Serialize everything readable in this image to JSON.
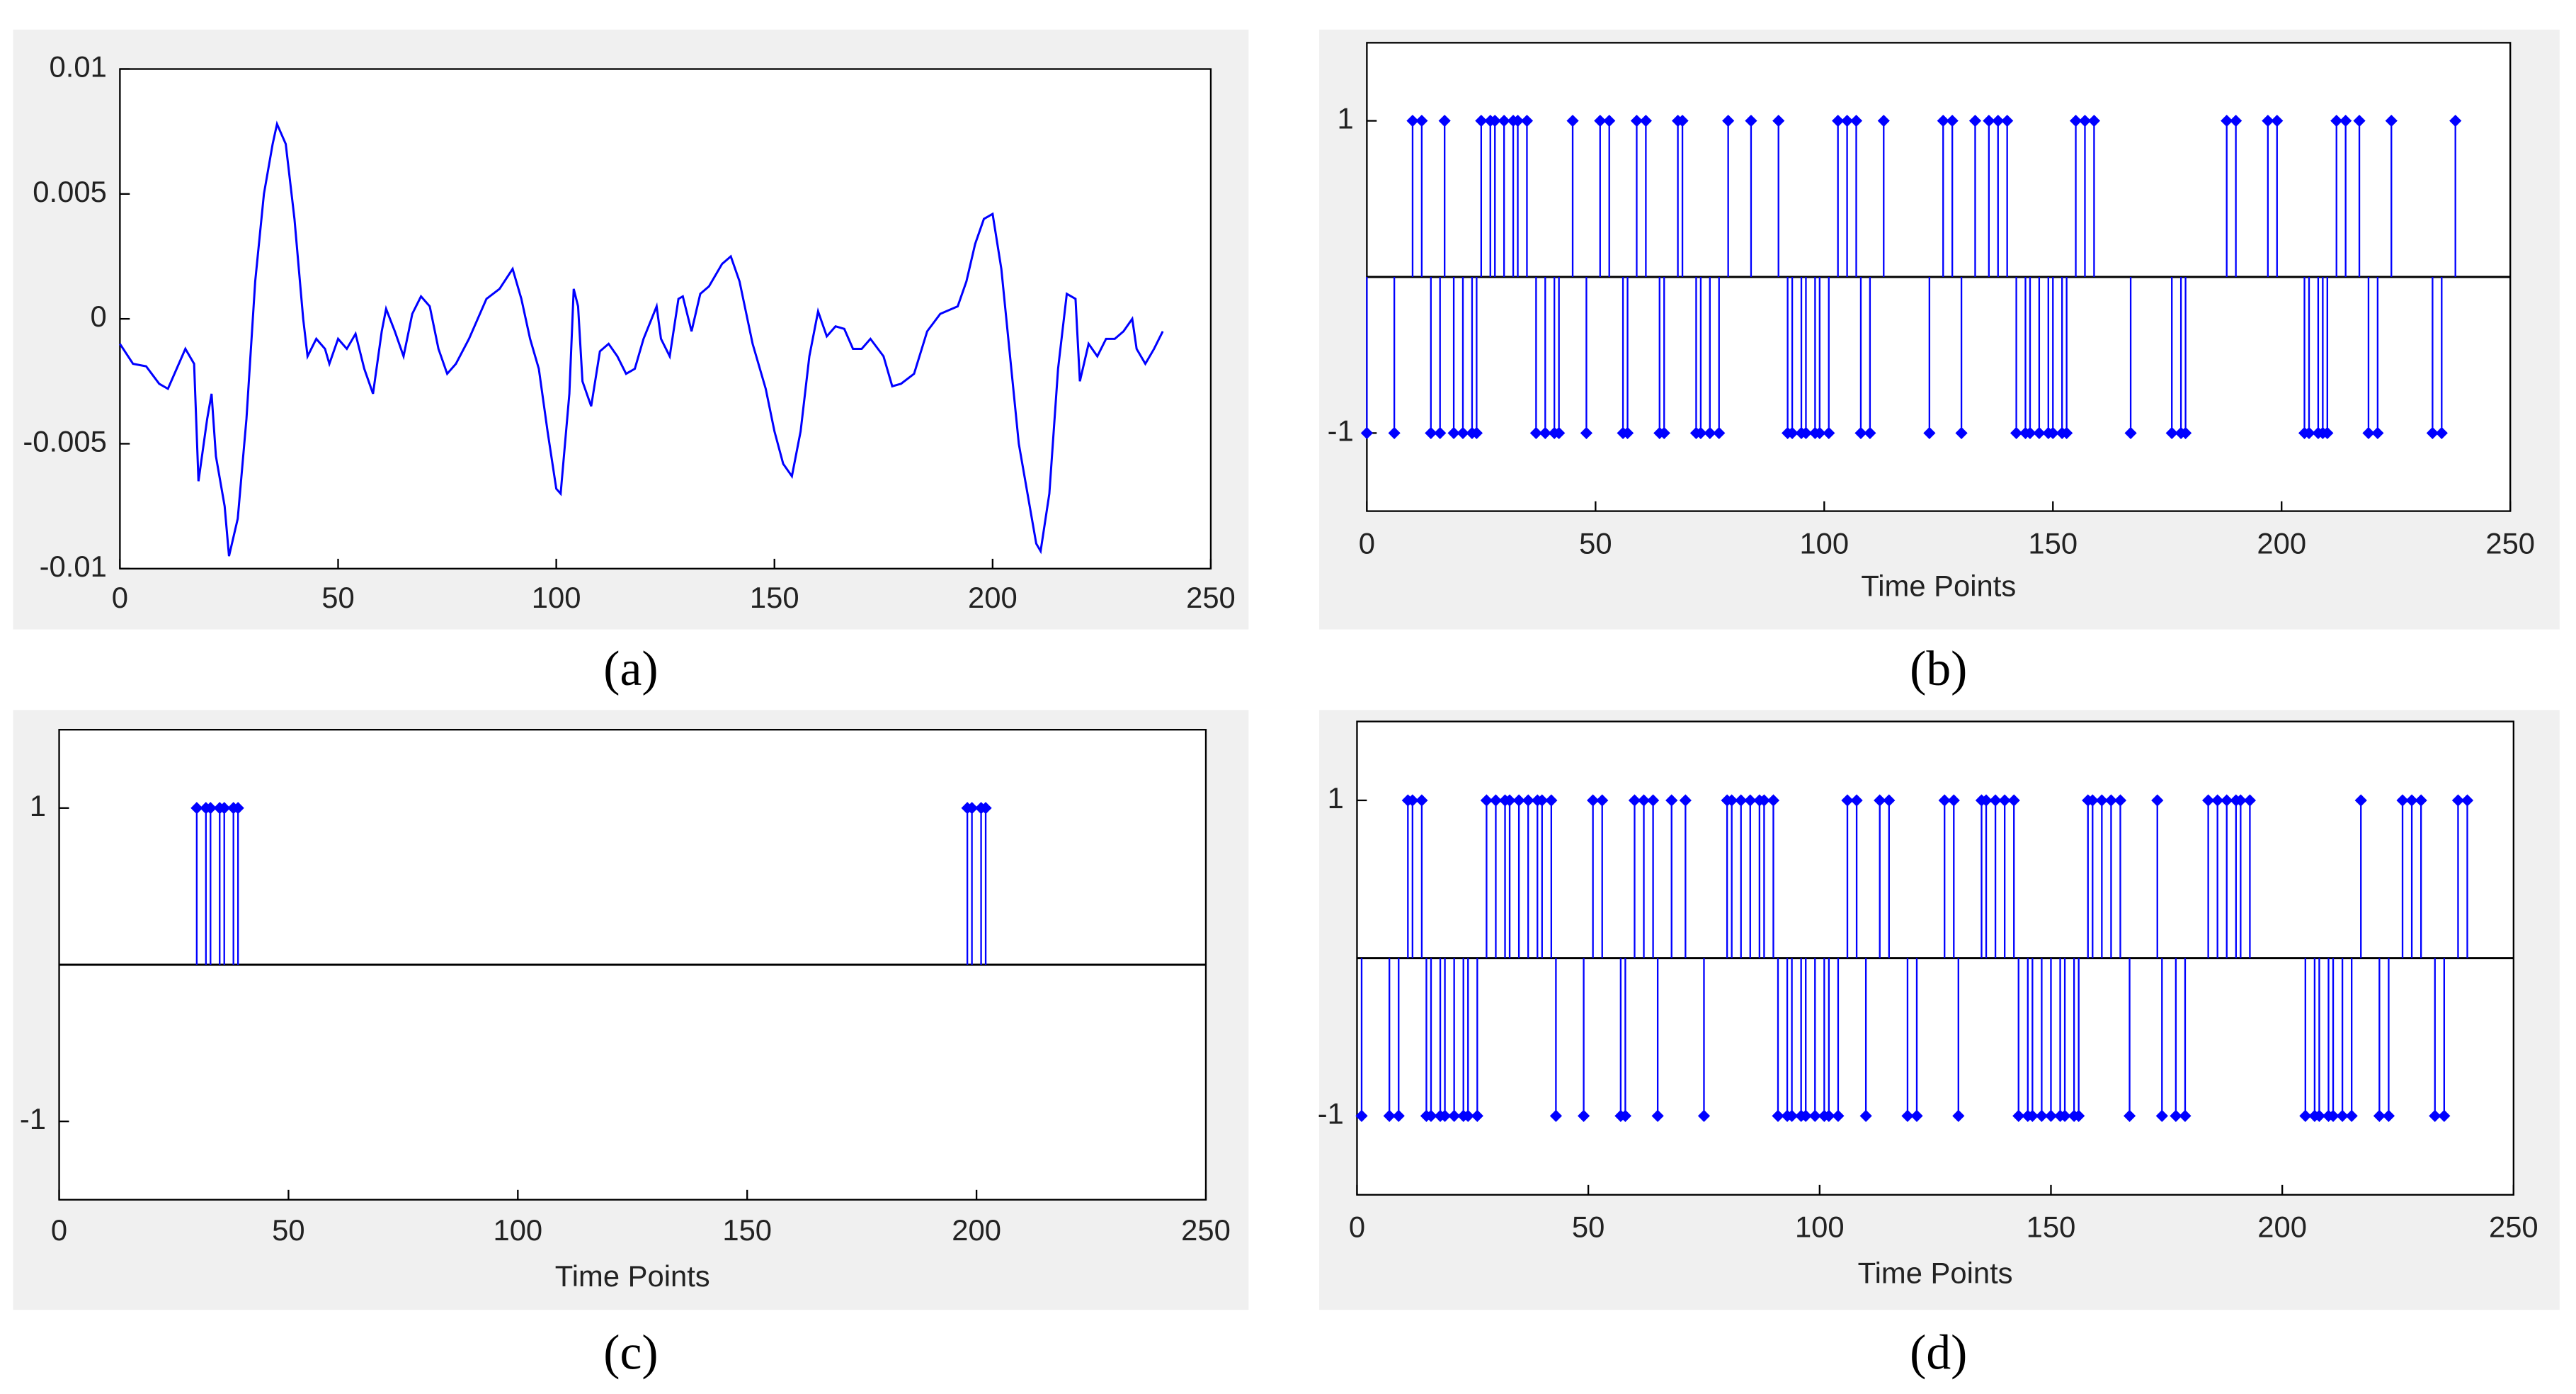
{
  "chart_data": [
    {
      "type": "line",
      "caption": "(a)",
      "color": "#0000ff",
      "x": [
        0,
        3,
        6,
        9,
        11,
        13,
        15,
        17,
        18,
        20,
        21,
        22,
        24,
        25,
        27,
        29,
        31,
        33,
        35,
        36,
        38,
        40,
        42,
        43,
        45,
        47,
        48,
        50,
        52,
        54,
        56,
        58,
        60,
        61,
        63,
        65,
        67,
        69,
        71,
        73,
        75,
        77,
        80,
        84,
        87,
        90,
        92,
        94,
        96,
        98,
        100,
        101,
        103,
        104,
        105,
        106,
        108,
        110,
        112,
        114,
        116,
        118,
        120,
        123,
        124,
        126,
        128,
        129,
        131,
        133,
        135,
        138,
        140,
        142,
        145,
        148,
        150,
        152,
        154,
        156,
        158,
        160,
        162,
        164,
        166,
        168,
        170,
        172,
        175,
        177,
        179,
        182,
        185,
        188,
        192,
        194,
        196,
        198,
        200,
        202,
        204,
        206,
        208,
        210,
        211,
        213,
        215,
        217,
        219,
        220,
        222,
        224,
        226,
        228,
        230,
        232,
        233,
        235,
        237,
        239
      ],
      "values": [
        -0.001,
        -0.0018,
        -0.0019,
        -0.0026,
        -0.0028,
        -0.002,
        -0.0012,
        -0.0018,
        -0.0065,
        -0.004,
        -0.003,
        -0.0055,
        -0.0075,
        -0.0095,
        -0.008,
        -0.004,
        0.0015,
        0.005,
        0.007,
        0.0078,
        0.007,
        0.004,
        0,
        -0.0015,
        -0.0008,
        -0.0012,
        -0.0018,
        -0.0008,
        -0.0012,
        -0.0006,
        -0.002,
        -0.003,
        -0.0005,
        0.0004,
        -0.0005,
        -0.0015,
        0.0002,
        0.0009,
        0.0005,
        -0.0012,
        -0.0022,
        -0.0018,
        -0.0008,
        0.0008,
        0.0012,
        0.002,
        0.0008,
        -0.0008,
        -0.002,
        -0.0045,
        -0.0068,
        -0.007,
        -0.003,
        0.0012,
        0.0005,
        -0.0025,
        -0.0035,
        -0.0013,
        -0.001,
        -0.0015,
        -0.0022,
        -0.002,
        -0.0008,
        0.0005,
        -0.0008,
        -0.0015,
        0.0008,
        0.0009,
        -0.0005,
        0.001,
        0.0013,
        0.0022,
        0.0025,
        0.0015,
        -0.001,
        -0.0028,
        -0.0045,
        -0.0058,
        -0.0063,
        -0.0045,
        -0.0015,
        0.0003,
        -0.0007,
        -0.0003,
        -0.0004,
        -0.0012,
        -0.0012,
        -0.0008,
        -0.0015,
        -0.0027,
        -0.0026,
        -0.0022,
        -0.0005,
        0.0002,
        0.0005,
        0.0015,
        0.003,
        0.004,
        0.0042,
        0.002,
        -0.0015,
        -0.005,
        -0.007,
        -0.009,
        -0.0093,
        -0.007,
        -0.002,
        0.001,
        0.0008,
        -0.0025,
        -0.001,
        -0.0015,
        -0.0008,
        -0.0008,
        -0.0005,
        0,
        -0.0012,
        -0.0018,
        -0.0012,
        -0.0005
      ],
      "xlim": [
        0,
        250
      ],
      "xticks": [
        0,
        50,
        100,
        150,
        200,
        250
      ],
      "ylim": [
        -0.01,
        0.01
      ],
      "yticks": [
        0.01,
        0.005,
        0,
        -0.005,
        -0.01
      ]
    },
    {
      "type": "stem",
      "caption": "(b)",
      "xlabel": "Time Points",
      "color": "#0000ff",
      "x": [
        0,
        6,
        10,
        12,
        14,
        16,
        17,
        19,
        21,
        23,
        24,
        25,
        27,
        28,
        30,
        32,
        33,
        35,
        37,
        39,
        41,
        42,
        45,
        48,
        51,
        53,
        56,
        57,
        59,
        61,
        64,
        65,
        68,
        69,
        72,
        73,
        75,
        77,
        79,
        84,
        90,
        92,
        93,
        95,
        96,
        98,
        99,
        101,
        103,
        105,
        107,
        108,
        110,
        113,
        123,
        126,
        128,
        130,
        133,
        136,
        138,
        140,
        142,
        144,
        145,
        147,
        149,
        150,
        152,
        153,
        155,
        157,
        159,
        167,
        176,
        178,
        179,
        188,
        190,
        197,
        199,
        205,
        206,
        208,
        209,
        210,
        212,
        214,
        217,
        219,
        221,
        224,
        233,
        235,
        238
      ],
      "values": [
        -1,
        -1,
        1,
        1,
        -1,
        -1,
        1,
        -1,
        -1,
        -1,
        -1,
        1,
        1,
        1,
        1,
        1,
        1,
        1,
        -1,
        -1,
        -1,
        -1,
        1,
        -1,
        1,
        1,
        -1,
        -1,
        1,
        1,
        -1,
        -1,
        1,
        1,
        -1,
        -1,
        -1,
        -1,
        1,
        1,
        1,
        -1,
        -1,
        -1,
        -1,
        -1,
        -1,
        -1,
        1,
        1,
        1,
        -1,
        -1,
        1,
        -1,
        1,
        1,
        -1,
        1,
        1,
        1,
        1,
        -1,
        -1,
        -1,
        -1,
        -1,
        -1,
        -1,
        -1,
        1,
        1,
        1,
        -1,
        -1,
        -1,
        -1,
        1,
        1,
        1,
        1,
        -1,
        -1,
        -1,
        -1,
        -1,
        1,
        1,
        1,
        -1,
        -1,
        1,
        -1,
        -1,
        1
      ],
      "xlim": [
        0,
        250
      ],
      "xticks": [
        0,
        50,
        100,
        150,
        200,
        250
      ],
      "ylim": [
        -1.5,
        1.5
      ],
      "yticks": [
        1,
        -1
      ]
    },
    {
      "type": "stem",
      "caption": "(c)",
      "xlabel": "Time Points",
      "color": "#0000ff",
      "x": [
        30,
        32,
        33,
        35,
        36,
        38,
        39,
        198,
        199,
        201,
        202
      ],
      "values": [
        1,
        1,
        1,
        1,
        1,
        1,
        1,
        1,
        1,
        1,
        1
      ],
      "xlim": [
        0,
        250
      ],
      "xticks": [
        0,
        50,
        100,
        150,
        200,
        250
      ],
      "ylim": [
        -1.5,
        1.5
      ],
      "yticks": [
        1,
        -1
      ]
    },
    {
      "type": "stem",
      "caption": "(d)",
      "xlabel": "Time Points",
      "color": "#0000ff",
      "x": [
        1,
        7,
        9,
        11,
        12,
        14,
        15,
        16,
        18,
        19,
        21,
        23,
        24,
        26,
        28,
        30,
        32,
        33,
        35,
        37,
        39,
        40,
        42,
        43,
        49,
        51,
        53,
        57,
        58,
        60,
        62,
        64,
        65,
        68,
        71,
        75,
        80,
        81,
        83,
        85,
        87,
        88,
        90,
        91,
        93,
        94,
        96,
        97,
        99,
        101,
        102,
        104,
        106,
        108,
        110,
        113,
        115,
        119,
        121,
        127,
        129,
        130,
        135,
        136,
        138,
        140,
        142,
        143,
        145,
        146,
        148,
        150,
        152,
        153,
        155,
        156,
        158,
        159,
        161,
        163,
        165,
        167,
        173,
        174,
        177,
        179,
        184,
        186,
        188,
        190,
        191,
        193,
        205,
        207,
        208,
        210,
        211,
        213,
        215,
        217,
        221,
        223,
        226,
        228,
        230,
        233,
        235,
        238,
        240
      ],
      "values": [
        -1,
        -1,
        -1,
        1,
        1,
        1,
        -1,
        -1,
        -1,
        -1,
        -1,
        -1,
        -1,
        -1,
        1,
        1,
        1,
        1,
        1,
        1,
        1,
        1,
        1,
        -1,
        -1,
        1,
        1,
        -1,
        -1,
        1,
        1,
        1,
        -1,
        1,
        1,
        -1,
        1,
        1,
        1,
        1,
        1,
        1,
        1,
        -1,
        -1,
        -1,
        -1,
        -1,
        -1,
        -1,
        -1,
        -1,
        1,
        1,
        -1,
        1,
        1,
        -1,
        -1,
        1,
        1,
        -1,
        1,
        1,
        1,
        1,
        1,
        -1,
        -1,
        -1,
        -1,
        -1,
        -1,
        -1,
        -1,
        -1,
        1,
        1,
        1,
        1,
        1,
        -1,
        1,
        -1,
        -1,
        -1,
        1,
        1,
        1,
        1,
        1,
        1,
        -1,
        -1,
        -1,
        -1,
        -1,
        -1,
        -1,
        1,
        -1,
        -1,
        1,
        1,
        1,
        -1,
        -1,
        1,
        1
      ],
      "xlim": [
        0,
        250
      ],
      "xticks": [
        0,
        50,
        100,
        150,
        200,
        250
      ],
      "ylim": [
        -1.5,
        1.5
      ],
      "yticks": [
        1,
        -1
      ]
    }
  ]
}
